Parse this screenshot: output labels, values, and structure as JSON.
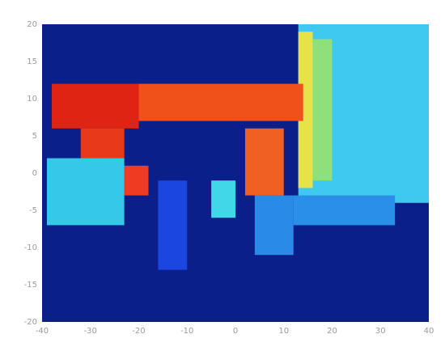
{
  "chart_data": {
    "type": "heatmap",
    "title": "",
    "xlabel": "",
    "ylabel": "",
    "xlim": [
      -40,
      40
    ],
    "ylim": [
      -20,
      20
    ],
    "x_ticks": [
      "-40",
      "-30",
      "-20",
      "-10",
      "0",
      "10",
      "20",
      "30",
      "40"
    ],
    "y_ticks": [
      "20",
      "15",
      "10",
      "5",
      "0",
      "-5",
      "-10",
      "-15",
      "-20"
    ],
    "background_color": "#0b1f8a",
    "grid": false,
    "legend": "none",
    "regions": [
      {
        "name": "right-wall-cyan",
        "color": "#3fc8f0",
        "x": [
          13,
          40
        ],
        "y": [
          -4,
          20
        ]
      },
      {
        "name": "right-wall-yellow",
        "color": "#e6e24a",
        "x": [
          13,
          16
        ],
        "y": [
          -2,
          19
        ]
      },
      {
        "name": "right-wall-green",
        "color": "#8ee07a",
        "x": [
          16,
          20
        ],
        "y": [
          -1,
          18
        ]
      },
      {
        "name": "upper-band-red",
        "color": "#e02414",
        "x": [
          -38,
          -20
        ],
        "y": [
          6,
          12
        ]
      },
      {
        "name": "upper-band-orange",
        "color": "#f0501a",
        "x": [
          -20,
          14
        ],
        "y": [
          7,
          12
        ]
      },
      {
        "name": "left-pillar-red",
        "color": "#e83a1a",
        "x": [
          -32,
          -23
        ],
        "y": [
          0,
          6
        ]
      },
      {
        "name": "mid-pillar-orange",
        "color": "#f06022",
        "x": [
          2,
          10
        ],
        "y": [
          -3,
          6
        ]
      },
      {
        "name": "small-block-red",
        "color": "#ee3b22",
        "x": [
          -23,
          -18
        ],
        "y": [
          -3,
          1
        ]
      },
      {
        "name": "left-block-cyan",
        "color": "#35c8e8",
        "x": [
          -39,
          -23
        ],
        "y": [
          -7,
          2
        ]
      },
      {
        "name": "center-block-cyan",
        "color": "#40d8e8",
        "x": [
          -5,
          0
        ],
        "y": [
          -6,
          -1
        ]
      },
      {
        "name": "tall-post-blue",
        "color": "#1b46e0",
        "x": [
          -16,
          -10
        ],
        "y": [
          -13,
          -1
        ]
      },
      {
        "name": "lower-block-blue",
        "color": "#2a8ae8",
        "x": [
          4,
          12
        ],
        "y": [
          -11,
          -3
        ]
      },
      {
        "name": "right-low-blue",
        "color": "#2a8fe8",
        "x": [
          12,
          33
        ],
        "y": [
          -7,
          -3
        ]
      }
    ]
  }
}
